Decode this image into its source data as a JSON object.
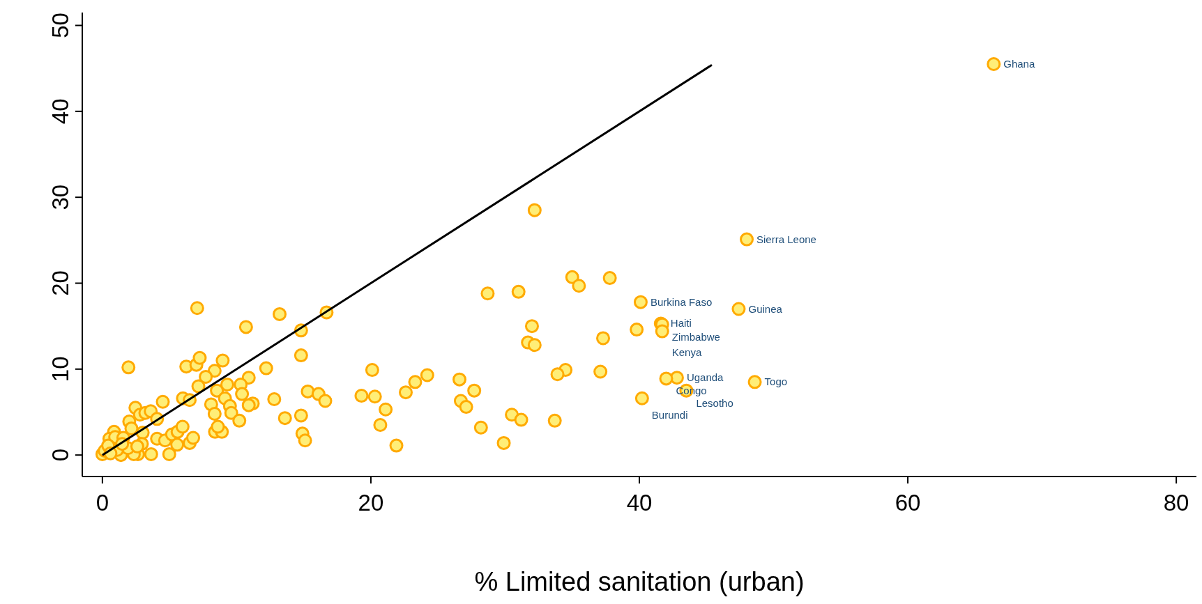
{
  "chart_data": {
    "type": "scatter",
    "xlabel": "% Limited sanitation (urban)",
    "xlim": [
      -1.5,
      81.5
    ],
    "ylim": [
      -2.5,
      51.5
    ],
    "xticks": [
      0,
      20,
      40,
      60,
      80
    ],
    "yticks": [
      0,
      10,
      20,
      30,
      40,
      50
    ],
    "grid": false,
    "legend": false,
    "marker": "circle",
    "series": [
      {
        "color": "#ffaa00",
        "x": [
          66.4,
          48.0,
          40.1,
          47.4,
          41.6,
          41.7,
          41.7,
          42.8,
          42.0,
          43.5,
          48.6,
          40.2,
          39.8,
          32.2,
          35.0,
          35.5,
          37.8,
          28.7,
          31.0,
          32.0,
          31.7,
          32.2,
          37.3,
          37.1,
          34.5,
          33.9,
          26.6,
          27.7,
          26.7,
          27.1,
          30.5,
          31.2,
          33.7,
          28.2,
          29.9,
          24.2,
          23.3,
          22.6,
          20.1,
          20.3,
          19.3,
          21.1,
          20.7,
          21.9,
          7.06,
          13.2,
          16.7,
          10.7,
          14.8,
          1.94,
          14.8,
          6.25,
          7.0,
          7.25,
          8.96,
          8.36,
          7.7,
          12.2,
          7.15,
          9.3,
          10.9,
          10.3,
          8.53,
          9.13,
          10.4,
          11.2,
          10.9,
          6.0,
          6.5,
          8.1,
          9.5,
          8.36,
          9.6,
          10.2,
          12.8,
          15.3,
          16.1,
          16.6,
          13.6,
          14.8,
          14.9,
          15.1,
          4.5,
          2.46,
          2.8,
          3.2,
          3.6,
          4.07,
          2.0,
          2.16,
          0.87,
          0.52,
          0.95,
          1.56,
          3.0,
          2.94,
          4.07,
          4.67,
          5.19,
          5.6,
          5.97,
          5.57,
          6.5,
          6.76,
          8.39,
          8.9,
          8.6,
          1.38,
          2.65,
          3.63,
          4.98,
          2.34,
          1.9,
          1.1,
          2.6,
          0,
          0.17,
          0.43,
          0.6,
          1.47
        ],
        "values": [
          45.5,
          25.1,
          17.8,
          17.0,
          15.3,
          15.2,
          14.4,
          9.0,
          8.9,
          7.5,
          8.5,
          6.6,
          14.6,
          28.5,
          20.7,
          19.7,
          20.6,
          18.8,
          19.0,
          15.0,
          13.1,
          12.8,
          13.6,
          9.7,
          9.9,
          9.4,
          8.8,
          7.5,
          6.3,
          5.6,
          4.7,
          4.1,
          4.0,
          3.2,
          1.4,
          9.3,
          8.5,
          7.3,
          9.9,
          6.8,
          6.9,
          5.3,
          3.5,
          1.1,
          17.1,
          16.4,
          16.6,
          14.9,
          14.5,
          10.2,
          11.6,
          10.3,
          10.5,
          11.3,
          11.0,
          9.8,
          9.1,
          10.1,
          8.0,
          8.2,
          9.0,
          8.2,
          7.5,
          6.6,
          7.1,
          6.0,
          5.8,
          6.6,
          6.4,
          5.9,
          5.7,
          4.8,
          4.9,
          4.0,
          6.5,
          7.4,
          7.1,
          6.3,
          4.3,
          4.6,
          2.5,
          1.7,
          6.2,
          5.5,
          4.7,
          4.9,
          5.1,
          4.2,
          3.9,
          3.1,
          2.7,
          1.9,
          2.1,
          2.0,
          2.6,
          1.3,
          1.9,
          1.7,
          2.4,
          2.7,
          3.3,
          1.2,
          1.4,
          2.0,
          2.7,
          2.7,
          3.3,
          0.0,
          0.1,
          0.1,
          0.1,
          0.1,
          0.8,
          0.6,
          1.0,
          0.1,
          0.5,
          1.1,
          0.2,
          1.3
        ]
      },
      {
        "type": "line",
        "color": "#000000",
        "x": [
          0,
          45.4
        ],
        "values": [
          0,
          45.4
        ],
        "marker": "none"
      }
    ],
    "annotations": [
      {
        "text": "Ghana",
        "x": 66.4,
        "y": 45.5
      },
      {
        "text": "Sierra Leone",
        "x": 48.0,
        "y": 25.1
      },
      {
        "text": "Burkina Faso",
        "x": 40.1,
        "y": 17.8
      },
      {
        "text": "Guinea",
        "x": 47.4,
        "y": 17.0
      },
      {
        "text": "Haiti",
        "x": 41.6,
        "y": 15.3
      },
      {
        "text": "Zimbabwe",
        "x": 41.7,
        "y": 15.2
      },
      {
        "text": "Kenya",
        "x": 41.7,
        "y": 14.4
      },
      {
        "text": "Uganda",
        "x": 42.8,
        "y": 9.0
      },
      {
        "text": "Congo",
        "x": 42.0,
        "y": 8.9
      },
      {
        "text": "Lesotho",
        "x": 43.5,
        "y": 7.5
      },
      {
        "text": "Togo",
        "x": 48.6,
        "y": 8.5
      },
      {
        "text": "Burundi",
        "x": 40.2,
        "y": 6.6
      }
    ]
  }
}
